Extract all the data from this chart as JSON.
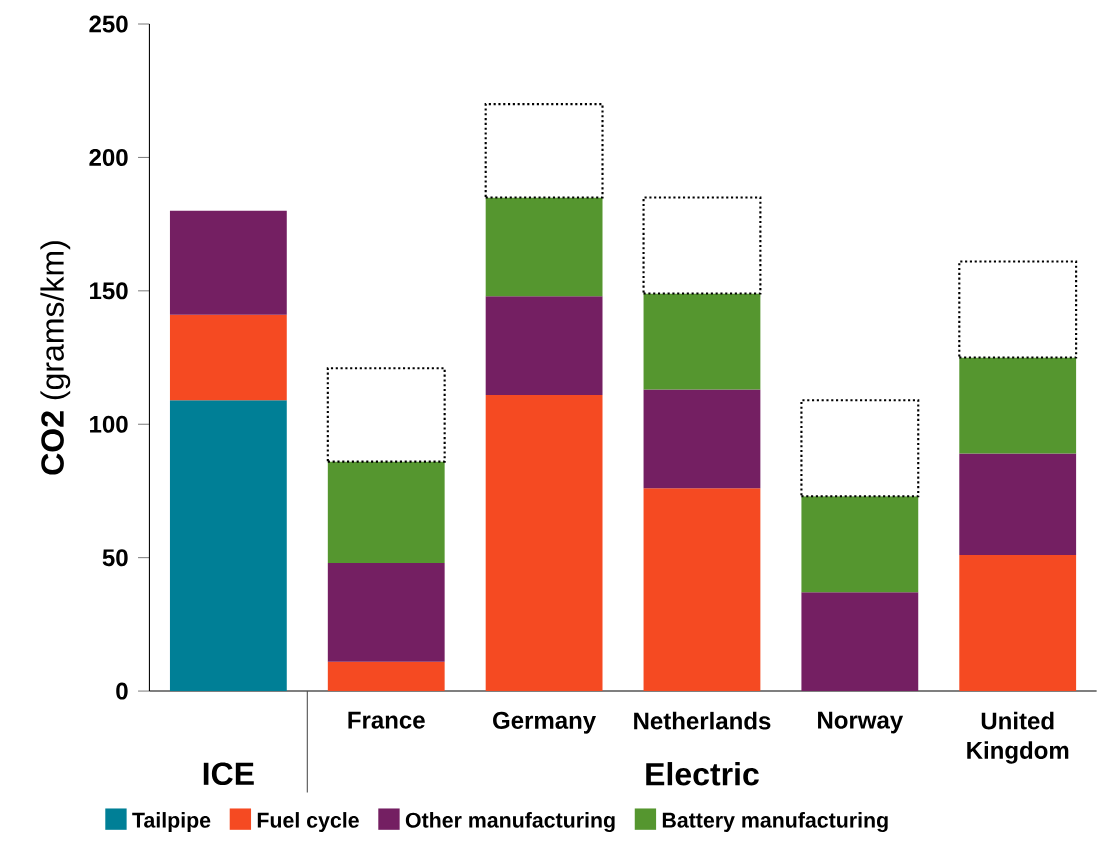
{
  "chart_data": {
    "type": "bar",
    "stacked": true,
    "ylabel": "**CO2** (grams/km)",
    "categories": [
      null,
      "France",
      "Germany",
      "Netherlands",
      "Norway",
      "United Kingdom"
    ],
    "annotations": [
      "ICE",
      "Electric"
    ],
    "ylim": [
      0,
      250
    ],
    "yticks": [
      0,
      50,
      100,
      150,
      200,
      250
    ],
    "grid": false,
    "legend": "bottom",
    "series": [
      {
        "name": "Tailpipe",
        "color": "#007f96",
        "values": [
          109,
          null,
          null,
          null,
          null,
          null
        ]
      },
      {
        "name": "Fuel cycle",
        "color": "#f54a22",
        "values": [
          32,
          11,
          111,
          76,
          null,
          51
        ]
      },
      {
        "name": "Other manufacturing",
        "color": "#741f62",
        "values": [
          39,
          37,
          37,
          37,
          37,
          38
        ]
      },
      {
        "name": "Battery manufacturing",
        "color": "#55962f",
        "values": [
          null,
          38,
          37,
          36,
          36,
          36
        ]
      },
      {
        "color": "#ffffff",
        "line_style": "dotted",
        "values": [
          null,
          35,
          35,
          36,
          36,
          36
        ]
      }
    ]
  }
}
